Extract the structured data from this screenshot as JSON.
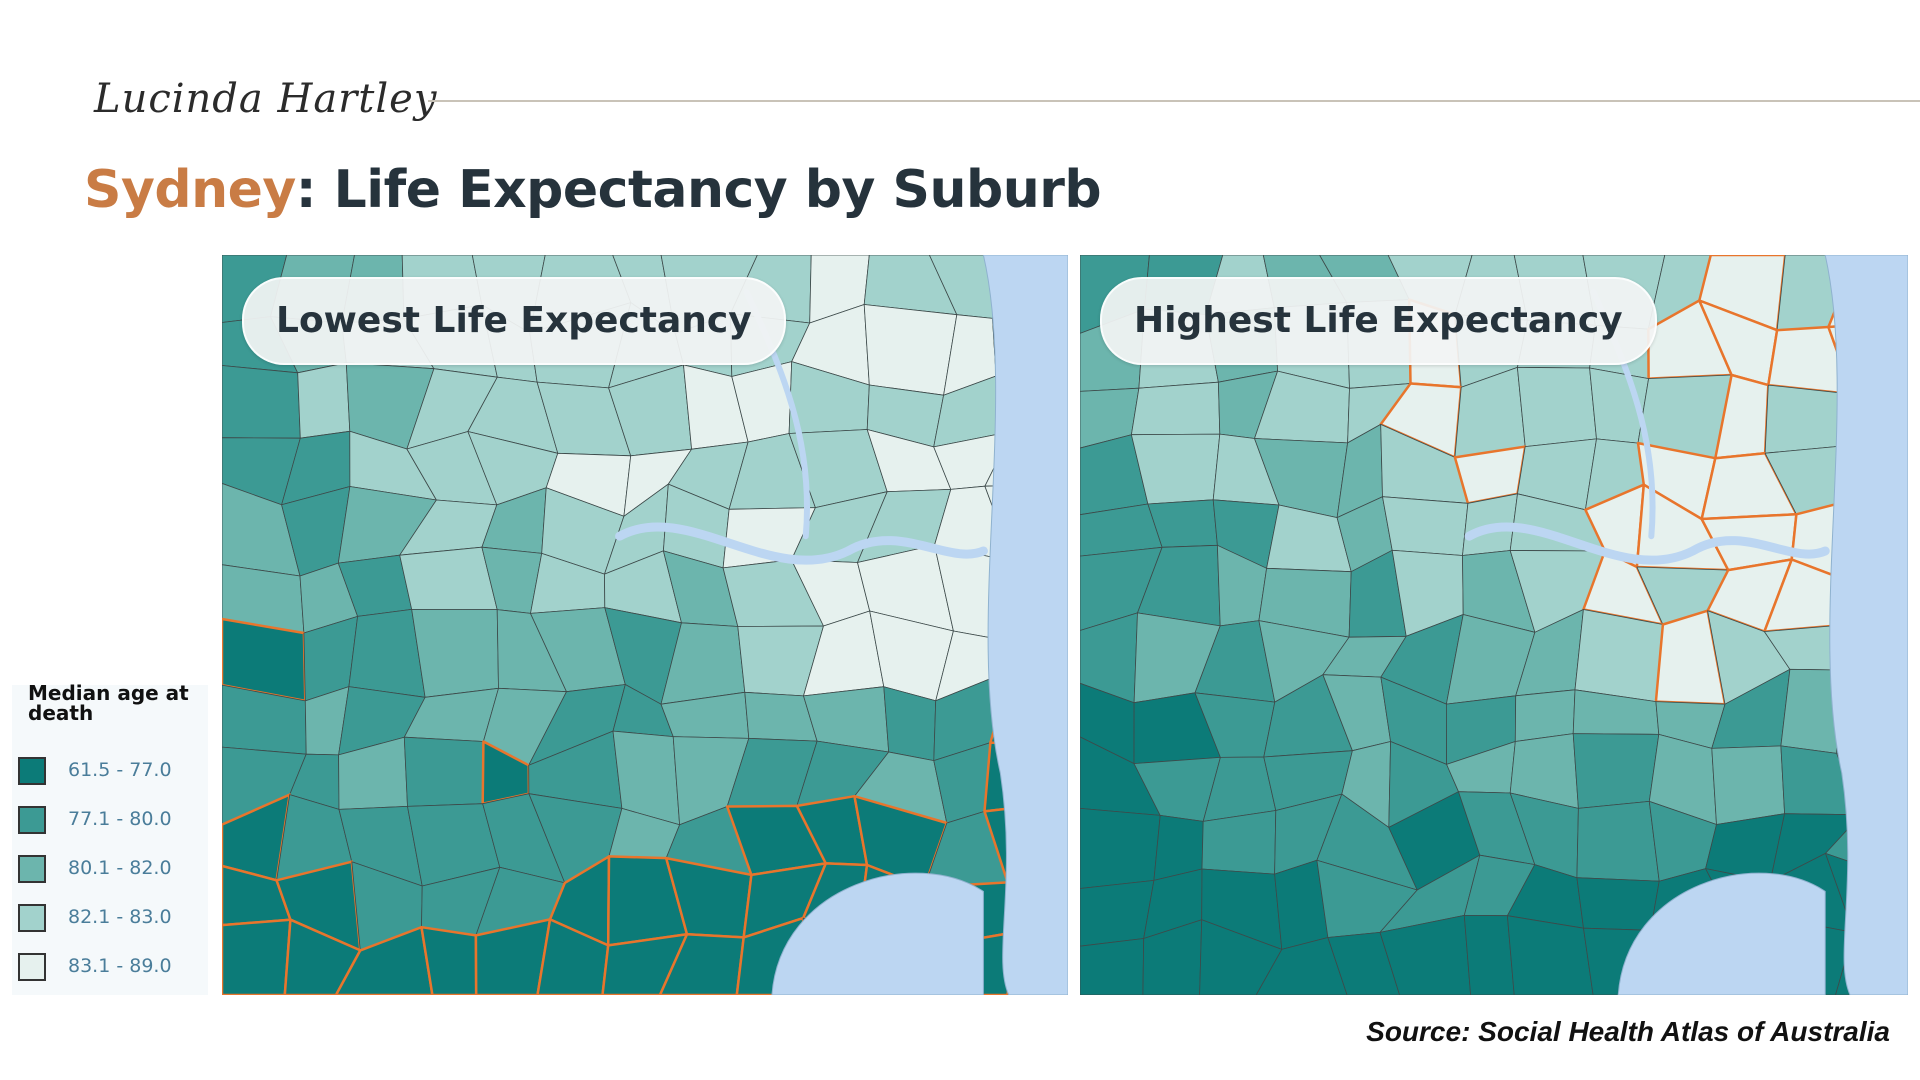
{
  "header": {
    "logo_text": "Lucinda Hartley",
    "title_accent": "Sydney",
    "title_rest": ": Life Expectancy by Suburb"
  },
  "maps": [
    {
      "label": "Lowest Life Expectancy",
      "highlighted_group": "61.5 - 77.0"
    },
    {
      "label": "Highest Life Expectancy",
      "highlighted_group": "83.1 - 89.0"
    }
  ],
  "legend": {
    "title": "Median age at death",
    "items": [
      {
        "label": "61.5 - 77.0",
        "color": "#0c7b78"
      },
      {
        "label": "77.1 - 80.0",
        "color": "#3c9a94"
      },
      {
        "label": "80.1 - 82.0",
        "color": "#6cb5ad"
      },
      {
        "label": "82.1 - 83.0",
        "color": "#a2d2cc"
      },
      {
        "label": "83.1 - 89.0",
        "color": "#e6f1ee"
      }
    ]
  },
  "colors": {
    "highlight_outline": "#e8752c",
    "water": "#bcd6f2",
    "title_accent": "#c97c45",
    "title_text": "#26333c"
  },
  "footer": {
    "source": "Source:  Social Health Atlas of Australia"
  }
}
